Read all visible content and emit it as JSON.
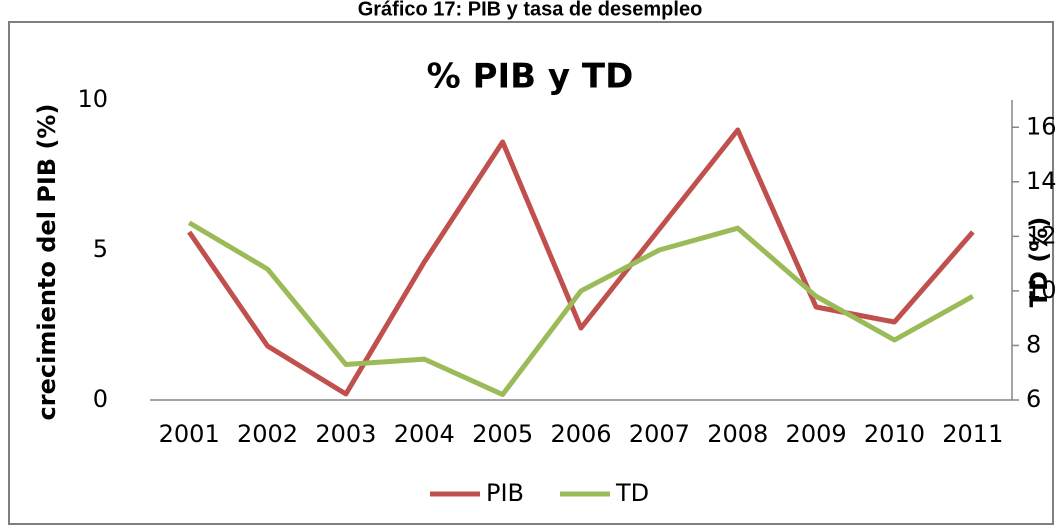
{
  "caption": "Gráfico 17: PIB y tasa de desempleo",
  "chart_data": {
    "type": "line",
    "title": "% PIB y TD",
    "ylabel": "crecimiento del PIB (%)",
    "y2label": "TD (%)",
    "categories": [
      "2001",
      "2002",
      "2003",
      "2004",
      "2005",
      "2006",
      "2007",
      "2008",
      "2009",
      "2010",
      "2011"
    ],
    "series": [
      {
        "name": "PIB",
        "color": "#c0504d",
        "values": [
          5.6,
          1.8,
          0.2,
          4.6,
          8.6,
          2.4,
          5.7,
          9.0,
          3.1,
          2.6,
          5.6
        ]
      },
      {
        "name": "TD",
        "color": "#9bbb59",
        "axis": "y2",
        "values": [
          12.5,
          10.8,
          7.3,
          7.5,
          6.2,
          10.0,
          11.5,
          12.3,
          9.8,
          8.2,
          9.8
        ]
      }
    ],
    "ylim": [
      0,
      10
    ],
    "yticks": [
      0,
      5,
      10
    ],
    "y2lim": [
      6,
      17
    ],
    "y2ticks": [
      6,
      8,
      10,
      12,
      14,
      16
    ],
    "legend": "bottom"
  }
}
